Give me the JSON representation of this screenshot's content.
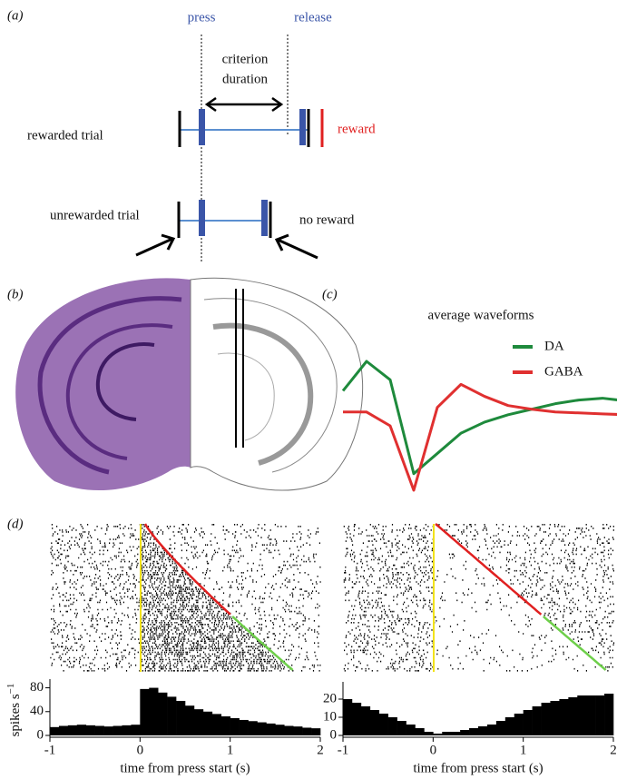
{
  "panels": {
    "a": {
      "label": "(a)",
      "press": "press",
      "release": "release",
      "criterion": "criterion",
      "duration": "duration",
      "rewarded_trial": "rewarded trial",
      "reward": "reward",
      "unrewarded_trial": "unrewarded trial",
      "no_reward": "no reward"
    },
    "b": {
      "label": "(b)"
    },
    "c": {
      "label": "(c)"
    },
    "d": {
      "label": "(d)"
    }
  },
  "chart_data": [
    {
      "type": "line",
      "title": "average waveforms",
      "x": [
        0,
        1,
        2,
        3,
        4,
        5,
        6,
        7,
        8,
        9,
        10,
        11,
        12
      ],
      "series": [
        {
          "name": "DA",
          "color": "#1e8a3c",
          "values": [
            28,
            60,
            40,
            -62,
            -40,
            -18,
            -6,
            2,
            8,
            14,
            18,
            20,
            17
          ]
        },
        {
          "name": "GABA",
          "color": "#e03030",
          "values": [
            5,
            5,
            -10,
            -80,
            10,
            35,
            22,
            12,
            8,
            5,
            4,
            3,
            2
          ]
        }
      ]
    },
    {
      "type": "histogram",
      "xlabel": "time from press start (s)",
      "ylabel": "spikes s",
      "ylabel_sup": "−1",
      "color": "#000000",
      "bins": [
        -1,
        -0.9,
        -0.8,
        -0.7,
        -0.6,
        -0.5,
        -0.4,
        -0.3,
        -0.2,
        -0.1,
        0,
        0.1,
        0.2,
        0.3,
        0.4,
        0.5,
        0.6,
        0.7,
        0.8,
        0.9,
        1,
        1.1,
        1.2,
        1.3,
        1.4,
        1.5,
        1.6,
        1.7,
        1.8,
        1.9,
        2
      ],
      "values": [
        14,
        16,
        17,
        18,
        17,
        16,
        15,
        16,
        17,
        18,
        78,
        80,
        72,
        65,
        58,
        50,
        44,
        40,
        36,
        32,
        29,
        26,
        24,
        22,
        20,
        18,
        16,
        15,
        13,
        12
      ],
      "xlim": [
        -1,
        2
      ],
      "xticks": [
        -1,
        0,
        1,
        2
      ],
      "ylim": [
        0,
        90
      ],
      "yticks": [
        0,
        40,
        80
      ]
    },
    {
      "type": "histogram",
      "xlabel": "time from press start (s)",
      "color": "#000000",
      "bins": [
        -1,
        -0.9,
        -0.8,
        -0.7,
        -0.6,
        -0.5,
        -0.4,
        -0.3,
        -0.2,
        -0.1,
        0,
        0.1,
        0.2,
        0.3,
        0.4,
        0.5,
        0.6,
        0.7,
        0.8,
        0.9,
        1,
        1.1,
        1.2,
        1.3,
        1.4,
        1.5,
        1.6,
        1.7,
        1.8,
        1.9,
        2
      ],
      "values": [
        20,
        18,
        16,
        14,
        12,
        10,
        8,
        6,
        4,
        2,
        1,
        2,
        2,
        3,
        4,
        5,
        6,
        8,
        10,
        12,
        14,
        16,
        18,
        19,
        20,
        21,
        22,
        22,
        22,
        23
      ],
      "xlim": [
        -1,
        2
      ],
      "xticks": [
        -1,
        0,
        1,
        2
      ],
      "ylim": [
        0,
        28
      ],
      "yticks": [
        0,
        10,
        20
      ]
    }
  ]
}
